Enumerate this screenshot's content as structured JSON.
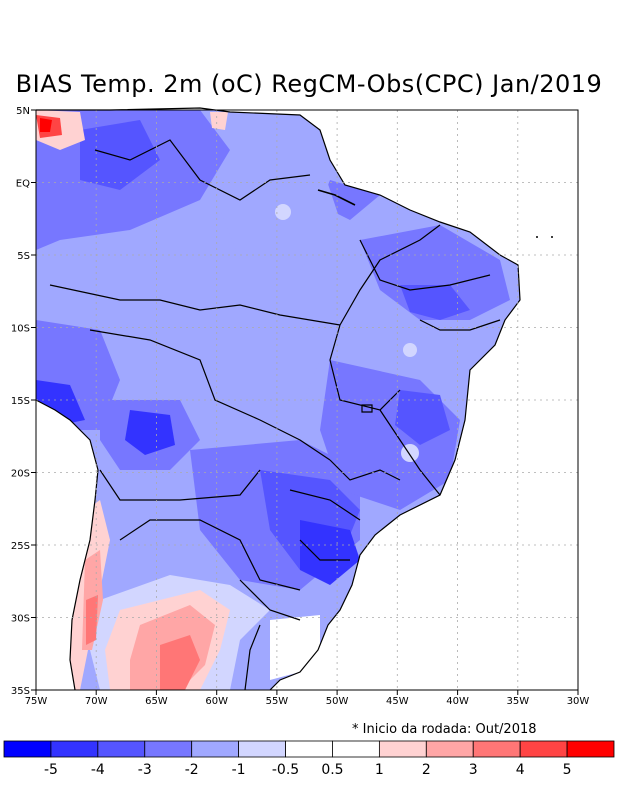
{
  "title": "BIAS Temp. 2m (oC) RegCM-Obs(CPC) Jan/2019",
  "note": "* Inicio da rodada: Out/2018",
  "axes": {
    "lon_labels": [
      "75W",
      "70W",
      "65W",
      "60W",
      "55W",
      "50W",
      "45W",
      "40W",
      "35W",
      "30W"
    ],
    "lat_labels": [
      "5N",
      "EQ",
      "5S",
      "10S",
      "15S",
      "20S",
      "25S",
      "30S",
      "35S"
    ]
  },
  "colorbar": {
    "labels": [
      "-5",
      "-4",
      "-3",
      "-2",
      "-1",
      "-0.5",
      "0.5",
      "1",
      "2",
      "3",
      "4",
      "5"
    ],
    "colors": [
      "#0000ff",
      "#3333ff",
      "#5555ff",
      "#7777ff",
      "#a0a8ff",
      "#d2d6ff",
      "#ffffff",
      "#ffd2d2",
      "#ffa6a6",
      "#ff7676",
      "#ff4444",
      "#ff0000"
    ]
  },
  "chart_data": {
    "type": "heatmap",
    "variable": "BIAS Temp. 2m (oC)",
    "comparison": "RegCM-Obs(CPC)",
    "period": "Jan/2019",
    "lon_range": [
      -75,
      -30
    ],
    "lat_range": [
      -35,
      5
    ],
    "grid": true,
    "levels": [
      -5,
      -4,
      -3,
      -2,
      -1,
      -0.5,
      0.5,
      1,
      2,
      3,
      4,
      5
    ]
  }
}
